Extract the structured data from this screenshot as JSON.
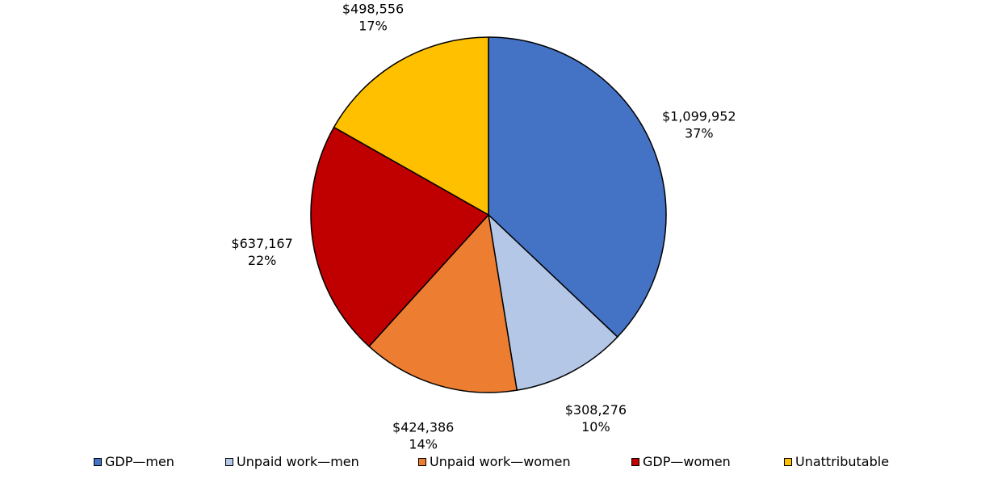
{
  "chart_data": {
    "type": "pie",
    "title": "",
    "slices": [
      {
        "name": "GDP—men",
        "value": 1099952,
        "label_value": "$1,099,952",
        "label_pct": "37%",
        "color": "#4472C4"
      },
      {
        "name": "Unpaid work—men",
        "value": 308276,
        "label_value": "$308,276",
        "label_pct": "10%",
        "color": "#B4C7E7"
      },
      {
        "name": "Unpaid work—women",
        "value": 424386,
        "label_value": "$424,386",
        "label_pct": "14%",
        "color": "#ED7D31"
      },
      {
        "name": "GDP—women",
        "value": 637167,
        "label_value": "$637,167",
        "label_pct": "22%",
        "color": "#C00000"
      },
      {
        "name": "Unattributable",
        "value": 498556,
        "label_value": "$498,556",
        "label_pct": "17%",
        "color": "#FFC000"
      }
    ],
    "legend_position": "bottom"
  }
}
